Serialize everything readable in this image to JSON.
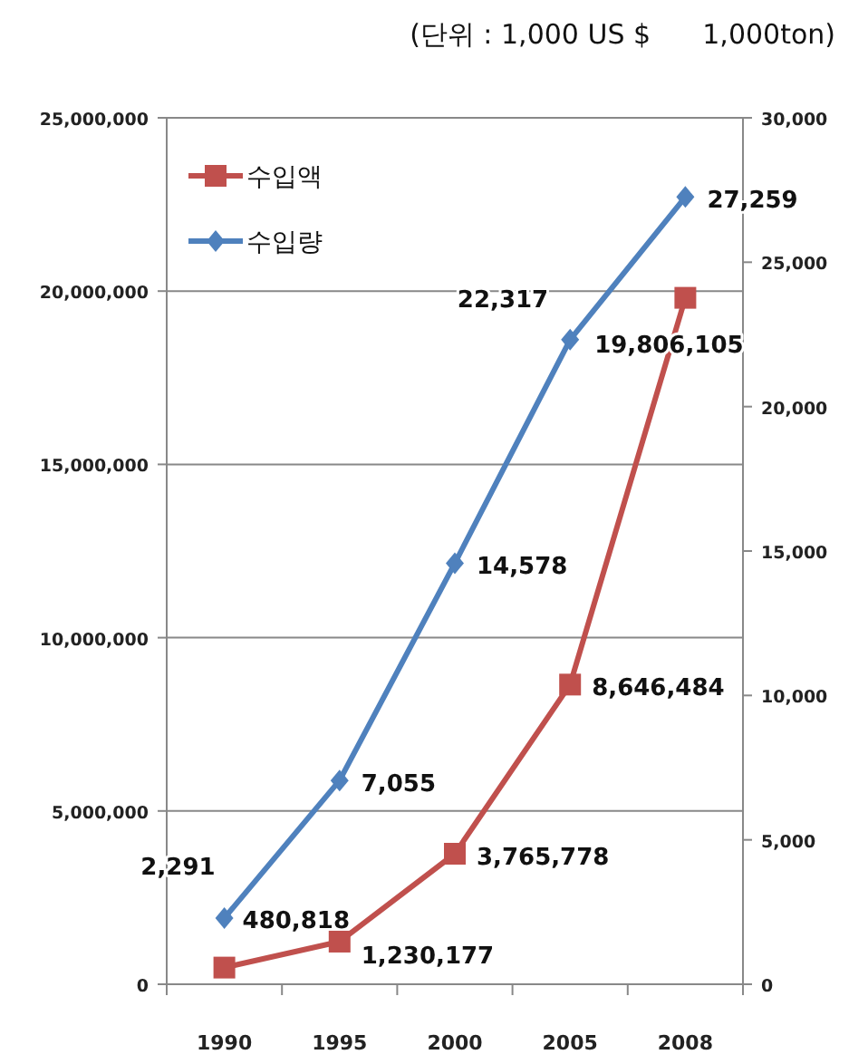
{
  "chart_data": {
    "type": "line",
    "annotations": [
      "(단위 : 1,000 US $      1,000ton)"
    ],
    "categories": [
      "1990",
      "1995",
      "2000",
      "2005",
      "2008"
    ],
    "series": [
      {
        "name": "수입액",
        "color": "#c0504d",
        "marker": "square",
        "values": [
          480818,
          1230177,
          3765778,
          8646484,
          19806105
        ],
        "value_labels": [
          "480,818",
          "1,230,177",
          "3,765,778",
          "8,646,484",
          "19,806,105"
        ]
      },
      {
        "name": "수입량",
        "color": "#4f81bd",
        "marker": "diamond",
        "axis": "y2",
        "values": [
          2291,
          7055,
          14578,
          22317,
          27259
        ],
        "value_labels": [
          "2,291",
          "7,055",
          "14,578",
          "22,317",
          "27,259"
        ]
      }
    ],
    "ylim": [
      0,
      25000000
    ],
    "yticks": [
      0,
      {
        "value": 5000000,
        "label": "5,000,000"
      },
      {
        "value": 10000000,
        "label": "10,000,000"
      },
      {
        "value": 15000000,
        "label": "15,000,000"
      },
      {
        "value": 20000000,
        "label": "20,000,000"
      },
      {
        "value": 25000000,
        "label": "25,000,000"
      }
    ],
    "y2lim": [
      0,
      30000
    ],
    "y2ticks": [
      0,
      {
        "value": 5000,
        "label": "5,000"
      },
      {
        "value": 10000,
        "label": "10,000"
      },
      {
        "value": 15000,
        "label": "15,000"
      },
      {
        "value": 20000,
        "label": "20,000"
      },
      {
        "value": 25000,
        "label": "25,000"
      },
      {
        "value": 30000,
        "label": "30,000"
      }
    ],
    "grid": "y",
    "legend": "top left"
  }
}
